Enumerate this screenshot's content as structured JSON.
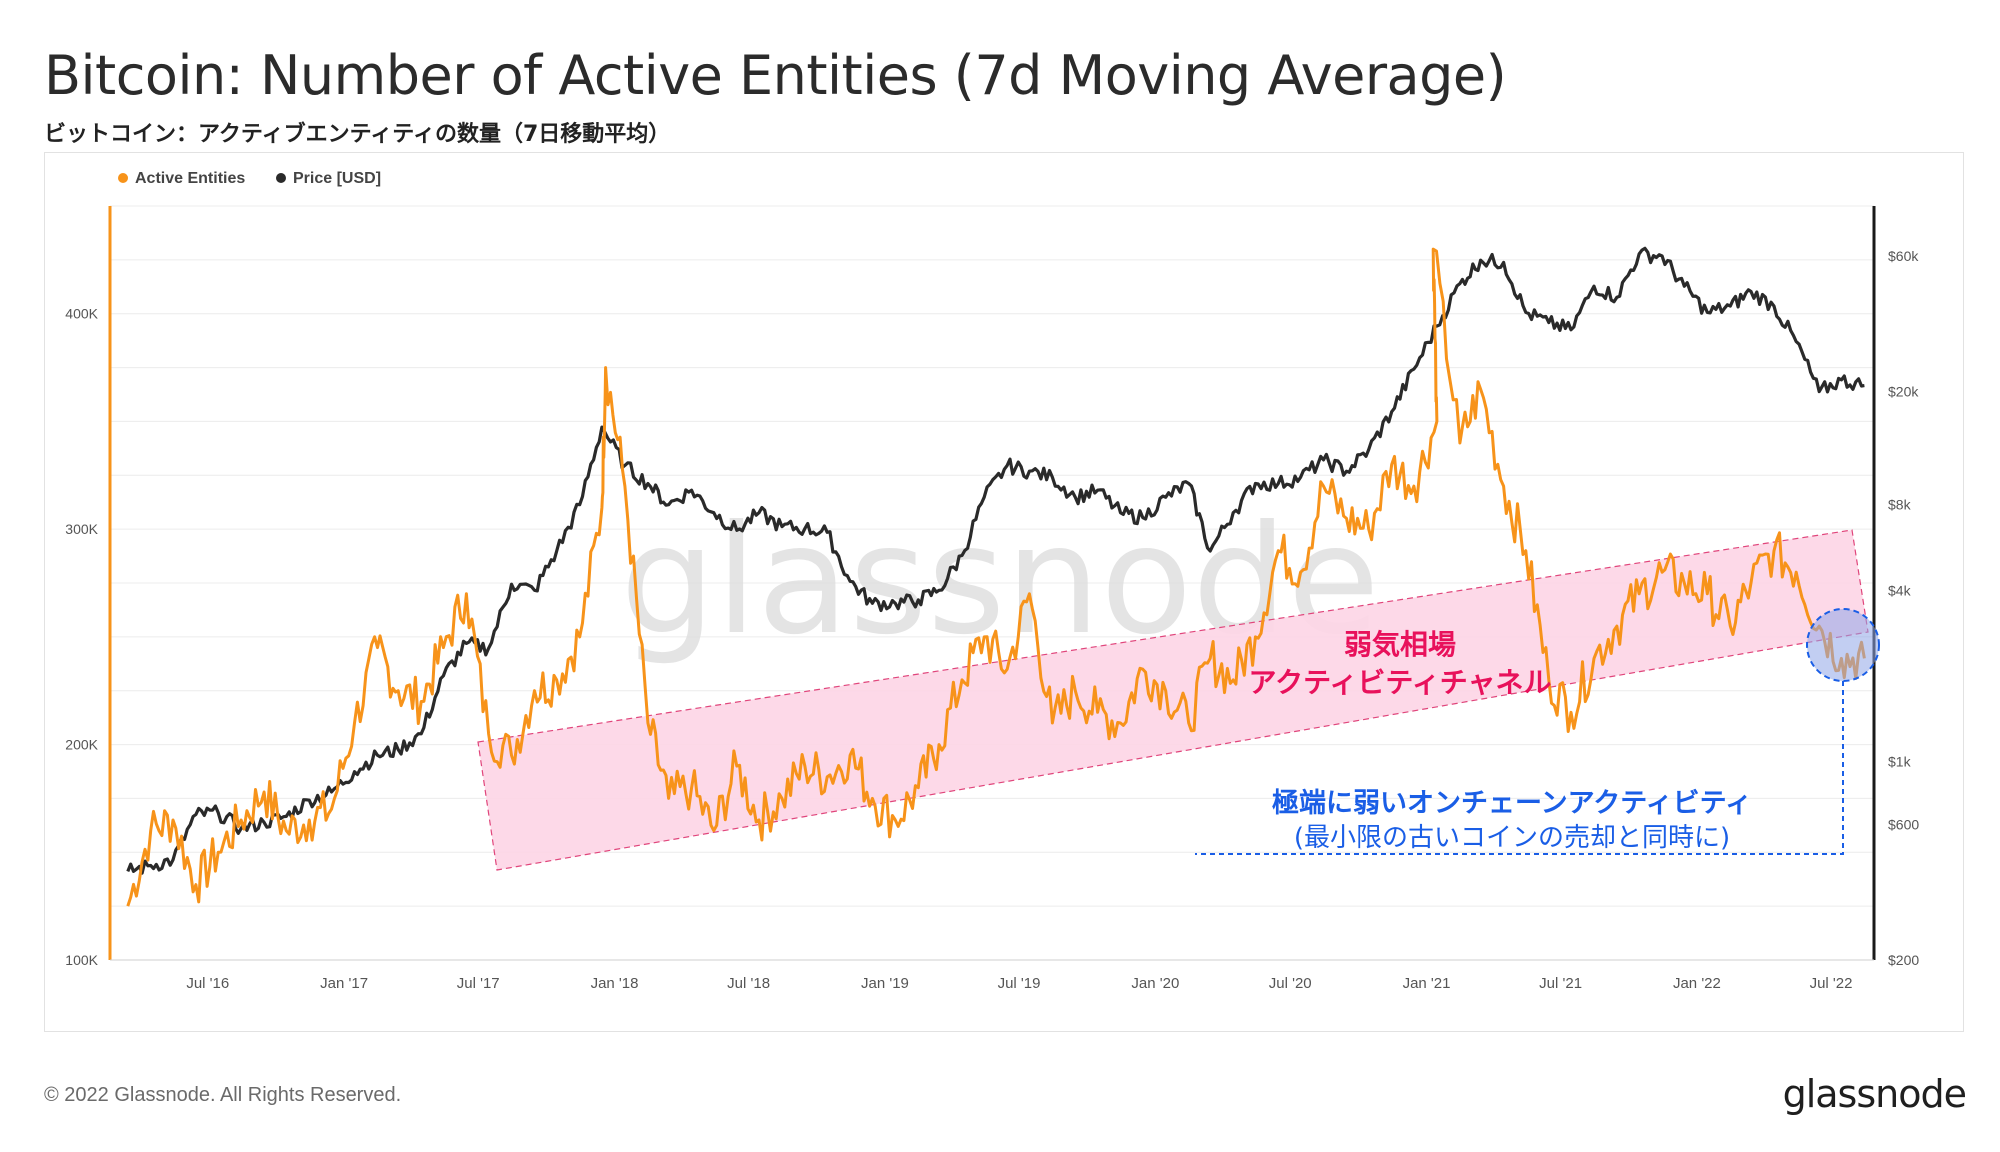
{
  "header": {
    "title": "Bitcoin: Number of Active Entities (7d Moving Average)",
    "subtitle": "ビットコイン：アクティブエンティティの数量（7日移動平均）"
  },
  "footer": {
    "copyright": "© 2022 Glassnode. All Rights Reserved.",
    "brand": "glassnode"
  },
  "watermark": "glassnode",
  "colors": {
    "entities": "#f7931a",
    "price": "#2a2a2a",
    "channel_fill": "#fdd5e6",
    "channel_edge": "#e0457b",
    "annotation_pink": "#e8115b",
    "annotation_blue": "#1a5ee6"
  },
  "annotations": {
    "channel_label_1": "弱気相場",
    "channel_label_2": "アクティビティチャネル",
    "weak_label_1": "極端に弱いオンチェーンアクティビティ",
    "weak_label_2": "(最小限の古いコインの売却と同時に)"
  },
  "chart_data": {
    "type": "line",
    "legend": [
      "Active Entities",
      "Price [USD]"
    ],
    "legend_position": "top-left",
    "grid": true,
    "x_ticks": [
      "Jul '16",
      "Jan '17",
      "Jul '17",
      "Jan '18",
      "Jul '18",
      "Jan '19",
      "Jul '19",
      "Jan '20",
      "Jul '20",
      "Jan '21",
      "Jul '21",
      "Jan '22",
      "Jul '22"
    ],
    "y_left_ticks": [
      "100K",
      "200K",
      "300K",
      "400K"
    ],
    "y_left_range": [
      100000,
      450000
    ],
    "y_right_ticks": [
      "$200",
      "$600",
      "$1k",
      "$4k",
      "$8k",
      "$20k",
      "$60k"
    ],
    "y_right_scale": "log",
    "y_right_range": [
      200,
      90000
    ],
    "series": [
      {
        "name": "Active Entities",
        "axis": "left",
        "x": [
          "2016-03",
          "2016-04",
          "2016-05",
          "2016-06",
          "2016-07",
          "2016-08",
          "2016-09",
          "2016-10",
          "2016-11",
          "2016-12",
          "2017-01",
          "2017-02",
          "2017-03",
          "2017-04",
          "2017-05",
          "2017-06",
          "2017-07",
          "2017-08",
          "2017-09",
          "2017-10",
          "2017-11",
          "2017-12",
          "2017-12-20",
          "2018-01",
          "2018-02",
          "2018-03",
          "2018-04",
          "2018-05",
          "2018-06",
          "2018-07",
          "2018-08",
          "2018-09",
          "2018-10",
          "2018-11",
          "2018-12",
          "2019-01",
          "2019-02",
          "2019-03",
          "2019-04",
          "2019-05",
          "2019-06",
          "2019-07",
          "2019-08",
          "2019-09",
          "2019-10",
          "2019-11",
          "2019-12",
          "2020-01",
          "2020-02",
          "2020-03",
          "2020-04",
          "2020-05",
          "2020-06",
          "2020-07",
          "2020-08",
          "2020-09",
          "2020-10",
          "2020-11",
          "2020-12",
          "2021-01",
          "2021-01-10",
          "2021-02",
          "2021-03",
          "2021-04",
          "2021-05",
          "2021-06",
          "2021-07",
          "2021-08",
          "2021-09",
          "2021-10",
          "2021-11",
          "2021-12",
          "2022-01",
          "2022-02",
          "2022-03",
          "2022-04",
          "2022-05",
          "2022-06",
          "2022-07",
          "2022-08"
        ],
        "values": [
          125000,
          160000,
          165000,
          135000,
          150000,
          165000,
          178000,
          160000,
          165000,
          170000,
          210000,
          245000,
          225000,
          220000,
          245000,
          270000,
          205000,
          195000,
          225000,
          230000,
          250000,
          310000,
          375000,
          320000,
          210000,
          175000,
          180000,
          160000,
          190000,
          165000,
          175000,
          190000,
          185000,
          195000,
          175000,
          165000,
          180000,
          200000,
          230000,
          250000,
          235000,
          270000,
          210000,
          225000,
          215000,
          210000,
          235000,
          225000,
          210000,
          240000,
          230000,
          250000,
          290000,
          280000,
          320000,
          305000,
          300000,
          330000,
          320000,
          350000,
          430000,
          340000,
          365000,
          320000,
          290000,
          230000,
          215000,
          240000,
          255000,
          270000,
          280000,
          275000,
          270000,
          255000,
          275000,
          290000,
          280000,
          255000,
          240000,
          240000
        ]
      },
      {
        "name": "Price [USD]",
        "axis": "right",
        "x": [
          "2016-03",
          "2016-04",
          "2016-05",
          "2016-06",
          "2016-07",
          "2016-08",
          "2016-09",
          "2016-10",
          "2016-11",
          "2016-12",
          "2017-01",
          "2017-02",
          "2017-03",
          "2017-04",
          "2017-05",
          "2017-06",
          "2017-07",
          "2017-08",
          "2017-09",
          "2017-10",
          "2017-11",
          "2017-12",
          "2018-01",
          "2018-02",
          "2018-03",
          "2018-04",
          "2018-05",
          "2018-06",
          "2018-07",
          "2018-08",
          "2018-09",
          "2018-10",
          "2018-11",
          "2018-12",
          "2019-01",
          "2019-02",
          "2019-03",
          "2019-04",
          "2019-05",
          "2019-06",
          "2019-07",
          "2019-08",
          "2019-09",
          "2019-10",
          "2019-11",
          "2019-12",
          "2020-01",
          "2020-02",
          "2020-03",
          "2020-04",
          "2020-05",
          "2020-06",
          "2020-07",
          "2020-08",
          "2020-09",
          "2020-10",
          "2020-11",
          "2020-12",
          "2021-01",
          "2021-02",
          "2021-03",
          "2021-04",
          "2021-05",
          "2021-06",
          "2021-07",
          "2021-08",
          "2021-09",
          "2021-10",
          "2021-11",
          "2021-12",
          "2022-01",
          "2022-02",
          "2022-03",
          "2022-04",
          "2022-05",
          "2022-06",
          "2022-07",
          "2022-08"
        ],
        "values": [
          410,
          430,
          450,
          650,
          660,
          580,
          610,
          640,
          730,
          780,
          920,
          1050,
          1100,
          1250,
          2000,
          2600,
          2500,
          4200,
          4000,
          5500,
          8000,
          15000,
          11000,
          9500,
          8000,
          9000,
          7500,
          6500,
          7500,
          6700,
          6600,
          6400,
          4300,
          3600,
          3600,
          3700,
          4000,
          5300,
          8500,
          11000,
          10500,
          10000,
          8500,
          9000,
          7500,
          7200,
          8500,
          9500,
          5500,
          7500,
          9500,
          9500,
          10000,
          11500,
          10500,
          12500,
          17000,
          24000,
          34000,
          48000,
          58000,
          57000,
          38000,
          35000,
          33000,
          47000,
          43000,
          61000,
          60000,
          47000,
          38000,
          40000,
          45000,
          40000,
          30000,
          20000,
          22000,
          21000
        ]
      }
    ]
  }
}
